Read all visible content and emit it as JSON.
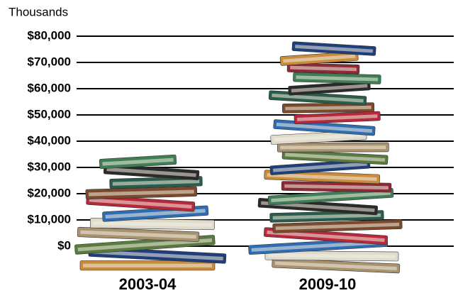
{
  "chart_data": {
    "type": "pictograph",
    "y_axis_label": "Thousands",
    "categories": [
      "2003-04",
      "2009-10"
    ],
    "values": [
      34000,
      77000
    ],
    "ylim": [
      0,
      80000
    ],
    "yticks": [
      {
        "value": 0,
        "label": "$0"
      },
      {
        "value": 10000,
        "label": "$10,000"
      },
      {
        "value": 20000,
        "label": "$20,000"
      },
      {
        "value": 30000,
        "label": "$30,000"
      },
      {
        "value": 40000,
        "label": "$40,000"
      },
      {
        "value": 50000,
        "label": "$50,000"
      },
      {
        "value": 60000,
        "label": "$60,000"
      },
      {
        "value": 70000,
        "label": "$70,000"
      },
      {
        "value": 80000,
        "label": "$80,000"
      }
    ],
    "grid": true
  }
}
